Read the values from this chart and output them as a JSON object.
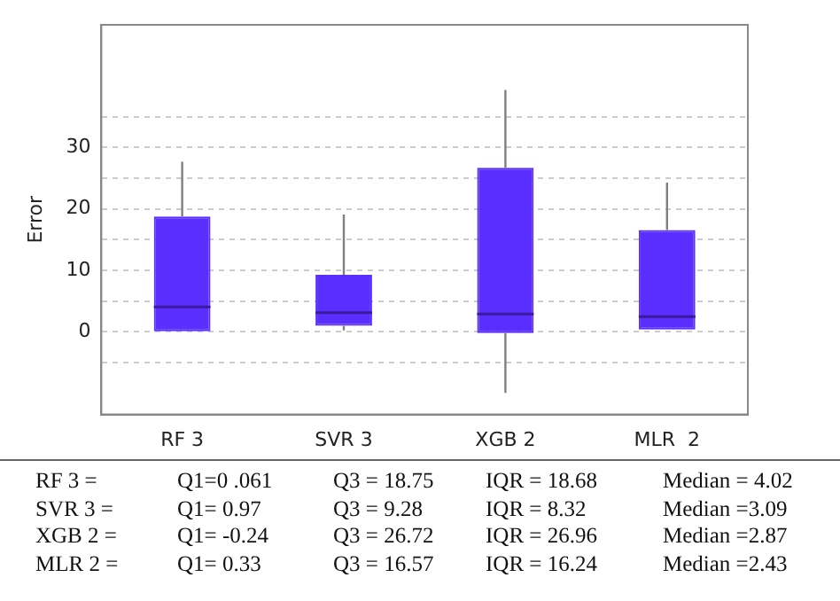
{
  "chart_data": {
    "type": "box",
    "ylabel": "Error",
    "categories": [
      "RF 3",
      "SVR 3",
      "XGB 2",
      "MLR  2"
    ],
    "color": "#5a2eff",
    "boxes": [
      {
        "low": 0.061,
        "q1": 0.061,
        "median": 4.02,
        "q3": 18.75,
        "high": 27.7
      },
      {
        "low": 0.2,
        "q1": 0.97,
        "median": 3.09,
        "q3": 9.28,
        "high": 19.1
      },
      {
        "low": -10,
        "q1": -0.24,
        "median": 2.87,
        "q3": 26.72,
        "high": 39.4
      },
      {
        "low": 0.33,
        "q1": 0.33,
        "median": 2.43,
        "q3": 16.57,
        "high": 24.3
      }
    ],
    "ylim": [
      -13.5,
      50
    ],
    "yticks": [
      {
        "value": -5,
        "label": null
      },
      0,
      {
        "value": 5,
        "label": null
      },
      10,
      {
        "value": 15,
        "label": null
      },
      20,
      {
        "value": 25,
        "label": null
      },
      30,
      {
        "value": 35,
        "label": null
      }
    ],
    "grid": "y",
    "annotations": [
      "RF 3 =",
      "Q1=0 .061",
      "Q3 = 18.75",
      "IQR = 18.68",
      "Median = 4.02",
      "SVR 3  =",
      "Q1= 0.97",
      "Q3 = 9.28",
      "IQR = 8.32",
      "Median =3.09",
      "XGB 2 =",
      "Q1= -0.24",
      "Q3 = 26.72",
      "IQR = 26.96",
      "Median =2.87",
      "MLR 2 =",
      "Q1= 0.33",
      "Q3 = 16.57",
      "IQR = 16.24",
      "Median =2.43"
    ]
  }
}
